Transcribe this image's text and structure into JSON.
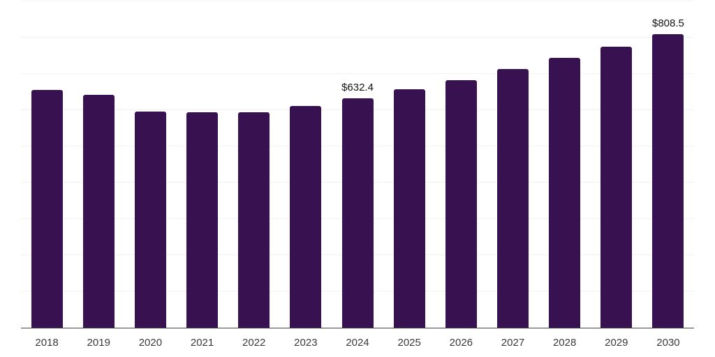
{
  "chart_data": {
    "type": "bar",
    "title": "",
    "xlabel": "",
    "ylabel": "",
    "categories": [
      "2018",
      "2019",
      "2020",
      "2021",
      "2022",
      "2023",
      "2024",
      "2025",
      "2026",
      "2027",
      "2028",
      "2029",
      "2030"
    ],
    "values": [
      656,
      642,
      596,
      594,
      594,
      610,
      632.4,
      657,
      682,
      712,
      743,
      775,
      808.5
    ],
    "data_labels": [
      "",
      "",
      "",
      "",
      "",
      "",
      "$632.4",
      "",
      "",
      "",
      "",
      "",
      "$808.5"
    ],
    "ylim": [
      0,
      900
    ],
    "grid": {
      "visible": true,
      "interval": 100,
      "color": "#f1f1f1"
    },
    "legend": "none",
    "colors": {
      "bar": "#371150",
      "axis_line": "#414141",
      "tick_label": "#3a3a3a",
      "data_label": "#121212",
      "background": "#ffffff"
    }
  }
}
